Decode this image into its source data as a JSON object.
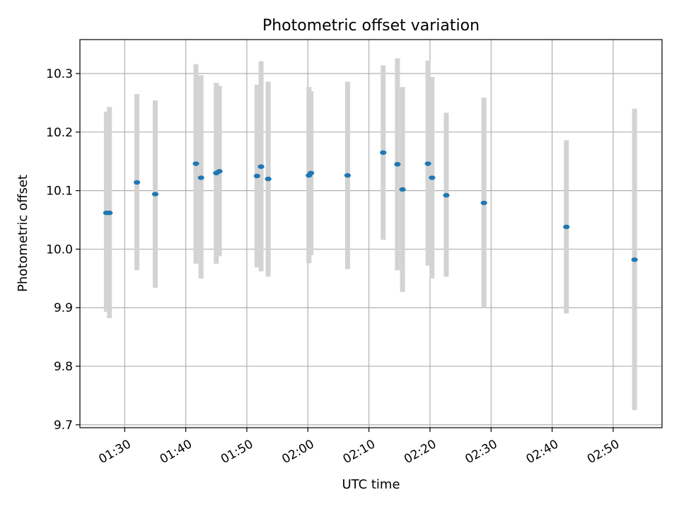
{
  "chart_data": {
    "type": "scatter",
    "title": "Photometric offset variation",
    "xlabel": "UTC time",
    "ylabel": "Photometric offset",
    "xlim": [
      "01:22:40",
      "02:58:00"
    ],
    "ylim": [
      9.695,
      10.358
    ],
    "xticks": [
      "01:30",
      "01:40",
      "01:50",
      "02:00",
      "02:10",
      "02:20",
      "02:30",
      "02:40",
      "02:50"
    ],
    "yticks": [
      "9.7",
      "9.8",
      "9.9",
      "10.0",
      "10.1",
      "10.2",
      "10.3"
    ],
    "grid": true,
    "colors": {
      "marker": "#1f77b4",
      "errorbar": "#d3d3d3",
      "grid": "#b0b0b0",
      "axes": "#000000"
    },
    "points": [
      {
        "t": "01:27:00",
        "y": 10.062,
        "lo": 9.893,
        "hi": 10.235
      },
      {
        "t": "01:27:30",
        "y": 10.062,
        "lo": 9.882,
        "hi": 10.243
      },
      {
        "t": "01:32:00",
        "y": 10.114,
        "lo": 9.964,
        "hi": 10.265
      },
      {
        "t": "01:35:00",
        "y": 10.094,
        "lo": 9.934,
        "hi": 10.254
      },
      {
        "t": "01:41:40",
        "y": 10.146,
        "lo": 9.975,
        "hi": 10.316
      },
      {
        "t": "01:42:30",
        "y": 10.122,
        "lo": 9.95,
        "hi": 10.297
      },
      {
        "t": "01:45:00",
        "y": 10.13,
        "lo": 9.975,
        "hi": 10.284
      },
      {
        "t": "01:45:30",
        "y": 10.133,
        "lo": 9.988,
        "hi": 10.279
      },
      {
        "t": "01:51:40",
        "y": 10.125,
        "lo": 9.969,
        "hi": 10.281
      },
      {
        "t": "01:52:20",
        "y": 10.141,
        "lo": 9.962,
        "hi": 10.321
      },
      {
        "t": "01:53:30",
        "y": 10.12,
        "lo": 9.953,
        "hi": 10.286
      },
      {
        "t": "02:00:10",
        "y": 10.126,
        "lo": 9.976,
        "hi": 10.277
      },
      {
        "t": "02:00:30",
        "y": 10.13,
        "lo": 9.99,
        "hi": 10.27
      },
      {
        "t": "02:06:30",
        "y": 10.126,
        "lo": 9.966,
        "hi": 10.286
      },
      {
        "t": "02:12:20",
        "y": 10.165,
        "lo": 10.016,
        "hi": 10.314
      },
      {
        "t": "02:14:40",
        "y": 10.145,
        "lo": 9.964,
        "hi": 10.326
      },
      {
        "t": "02:15:30",
        "y": 10.102,
        "lo": 9.927,
        "hi": 10.277
      },
      {
        "t": "02:19:40",
        "y": 10.146,
        "lo": 9.972,
        "hi": 10.322
      },
      {
        "t": "02:20:20",
        "y": 10.122,
        "lo": 9.95,
        "hi": 10.294
      },
      {
        "t": "02:22:40",
        "y": 10.092,
        "lo": 9.953,
        "hi": 10.233
      },
      {
        "t": "02:28:50",
        "y": 10.079,
        "lo": 9.9,
        "hi": 10.259
      },
      {
        "t": "02:42:20",
        "y": 10.038,
        "lo": 9.89,
        "hi": 10.186
      },
      {
        "t": "02:53:30",
        "y": 9.982,
        "lo": 9.725,
        "hi": 10.24
      }
    ]
  }
}
